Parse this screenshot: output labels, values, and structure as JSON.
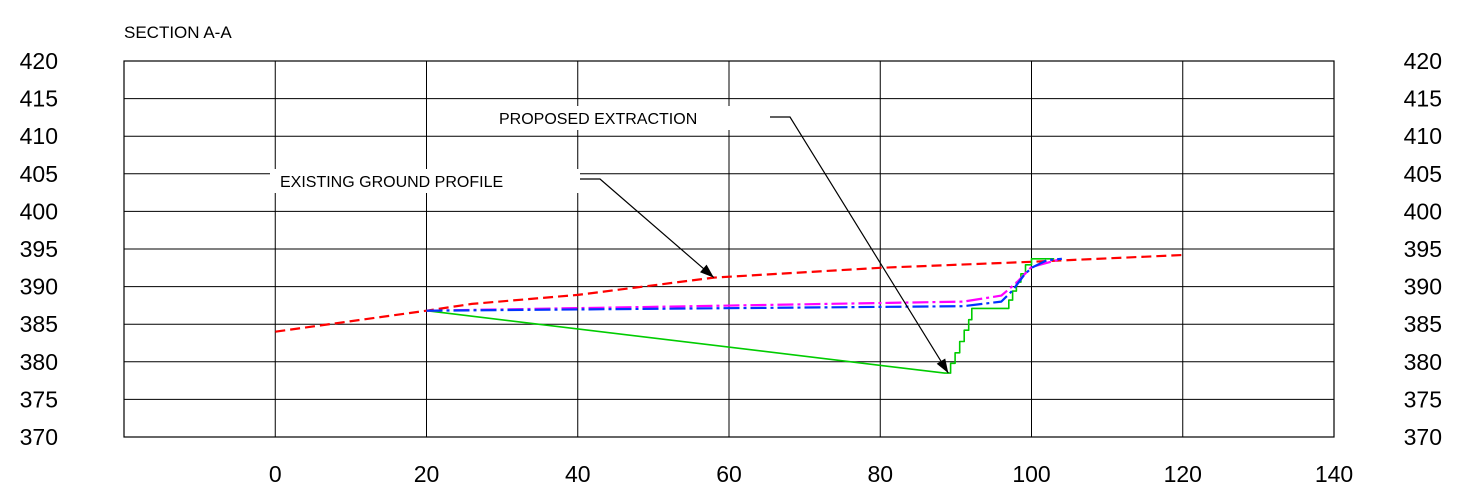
{
  "chart_data": {
    "type": "line",
    "title": "SECTION A-A",
    "xlabel": "",
    "ylabel": "",
    "xlim": [
      -20,
      140
    ],
    "ylim": [
      370,
      420
    ],
    "x_ticks": [
      0,
      20,
      40,
      60,
      80,
      100,
      120,
      140
    ],
    "y_ticks": [
      420,
      415,
      410,
      405,
      400,
      395,
      390,
      385,
      380,
      375,
      370
    ],
    "grid": true,
    "colors": {
      "existing_ground": "#ff0000",
      "proposed_extraction": "#00cc00",
      "magenta_profile": "#ff00ff",
      "blue_profile": "#0033ff",
      "grid": "#000000"
    },
    "annotations": [
      {
        "text": "EXISTING GROUND PROFILE",
        "points_to": [
          58,
          391.2
        ]
      },
      {
        "text": "PROPOSED EXTRACTION",
        "points_to": [
          89,
          378.5
        ]
      }
    ],
    "series": [
      {
        "color": "#ff0000",
        "style": "dashed",
        "x": [
          0,
          20,
          26,
          40,
          58,
          80,
          100,
          120
        ],
        "y": [
          384,
          386.8,
          387.7,
          388.9,
          391.2,
          392.5,
          393.3,
          394.2
        ]
      },
      {
        "color": "#00cc00",
        "style": "solid",
        "x": [
          20,
          88.5,
          89.3,
          89.3,
          89.9,
          89.9,
          90.5,
          90.5,
          91.1,
          91.1,
          91.7,
          91.7,
          92.1,
          92.1,
          97,
          97,
          97.5,
          97.5,
          98,
          98,
          98.6,
          98.6,
          99.2,
          99.2,
          100,
          100,
          103
        ],
        "y": [
          386.8,
          378.5,
          378.5,
          379.8,
          379.8,
          381.2,
          381.2,
          382.7,
          382.7,
          384.2,
          384.2,
          385.6,
          385.6,
          387.1,
          387.1,
          388.2,
          388.2,
          389.4,
          389.4,
          390.6,
          390.6,
          391.7,
          391.7,
          392.9,
          392.9,
          393.7,
          393.7
        ]
      },
      {
        "color": "#ff00ff",
        "style": "dashdot",
        "x": [
          20,
          91,
          96,
          98,
          100,
          104
        ],
        "y": [
          386.8,
          388,
          388.8,
          390.5,
          392.6,
          393.7
        ]
      },
      {
        "color": "#0033ff",
        "style": "dashdot",
        "x": [
          20,
          91,
          96,
          97.5,
          99,
          100,
          102,
          104
        ],
        "y": [
          386.8,
          387.4,
          388,
          389.5,
          391.5,
          392.5,
          393.5,
          393.7
        ]
      }
    ]
  }
}
